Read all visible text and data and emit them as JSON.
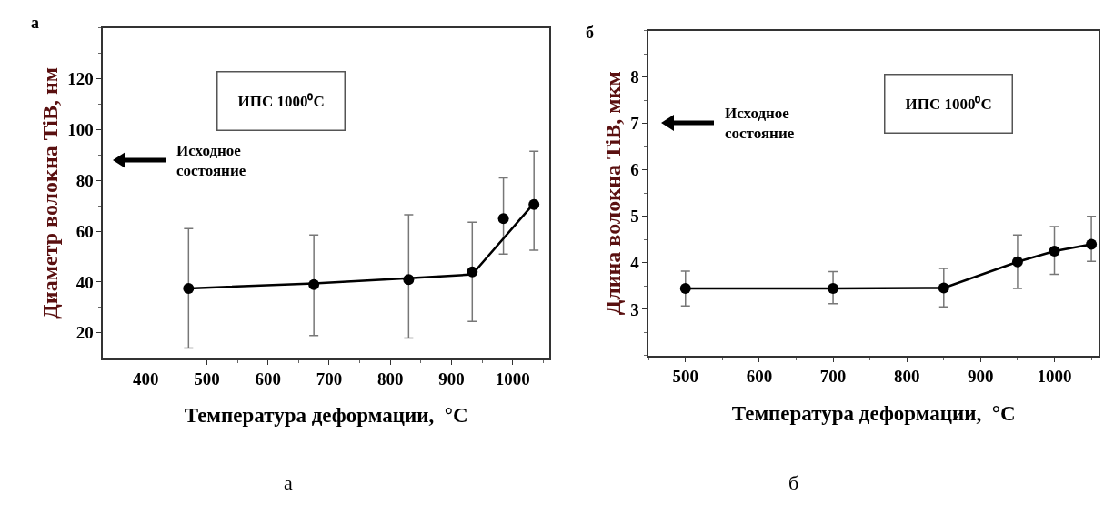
{
  "chart_data": [
    {
      "type": "line",
      "xlabel": "Температура деформации,  °C",
      "ylabel": "Диаметр волокна TiB, нм",
      "xlim": [
        330,
        1060
      ],
      "xticks": [
        400,
        500,
        600,
        700,
        800,
        900,
        1000
      ],
      "ylim": [
        10,
        140
      ],
      "yticks": [
        20,
        40,
        60,
        80,
        100,
        120
      ],
      "series": [
        {
          "type": "scatter",
          "marker": "circle",
          "color": "#000000",
          "x": [
            470,
            675,
            830,
            934,
            985,
            1035
          ],
          "values": [
            37.5,
            39,
            41,
            44,
            65,
            70.5
          ],
          "errors": [
            [
              14,
              61
            ],
            [
              19,
              58.5
            ],
            [
              18,
              66.5
            ],
            [
              24.5,
              63.5
            ],
            [
              51,
              81
            ],
            [
              52.5,
              91.5
            ]
          ]
        },
        {
          "marker": "none",
          "color": "#000000",
          "x": [
            470,
            675,
            830,
            934,
            1035
          ],
          "values": [
            37.5,
            39.5,
            41.5,
            43,
            71
          ]
        }
      ],
      "annotations": [
        "ИПС 1000⁰C",
        "Исходное\nсостояние",
        "а",
        "а"
      ]
    },
    {
      "type": "line",
      "xlabel": "Температура деформации,  °C",
      "ylabel": "Длина волокна TiB, мкм",
      "xlim": [
        450,
        1060
      ],
      "xticks": [
        500,
        600,
        700,
        800,
        900,
        1000
      ],
      "ylim": [
        2,
        9
      ],
      "yticks": [
        3,
        4,
        5,
        6,
        7,
        8
      ],
      "marker": "circle",
      "series": [
        {
          "color": "#000000",
          "x": [
            500,
            700,
            850,
            950,
            1000,
            1050
          ],
          "values": [
            3.45,
            3.45,
            3.46,
            4.02,
            4.25,
            4.4
          ],
          "errors": [
            [
              3.07,
              3.82
            ],
            [
              3.12,
              3.81
            ],
            [
              3.05,
              3.88
            ],
            [
              3.45,
              4.6
            ],
            [
              3.75,
              4.78
            ],
            [
              4.03,
              5.0
            ]
          ]
        }
      ],
      "annotations": [
        "ИПС 1000⁰C",
        "Исходное\nсостояние",
        "б",
        "б"
      ]
    }
  ]
}
